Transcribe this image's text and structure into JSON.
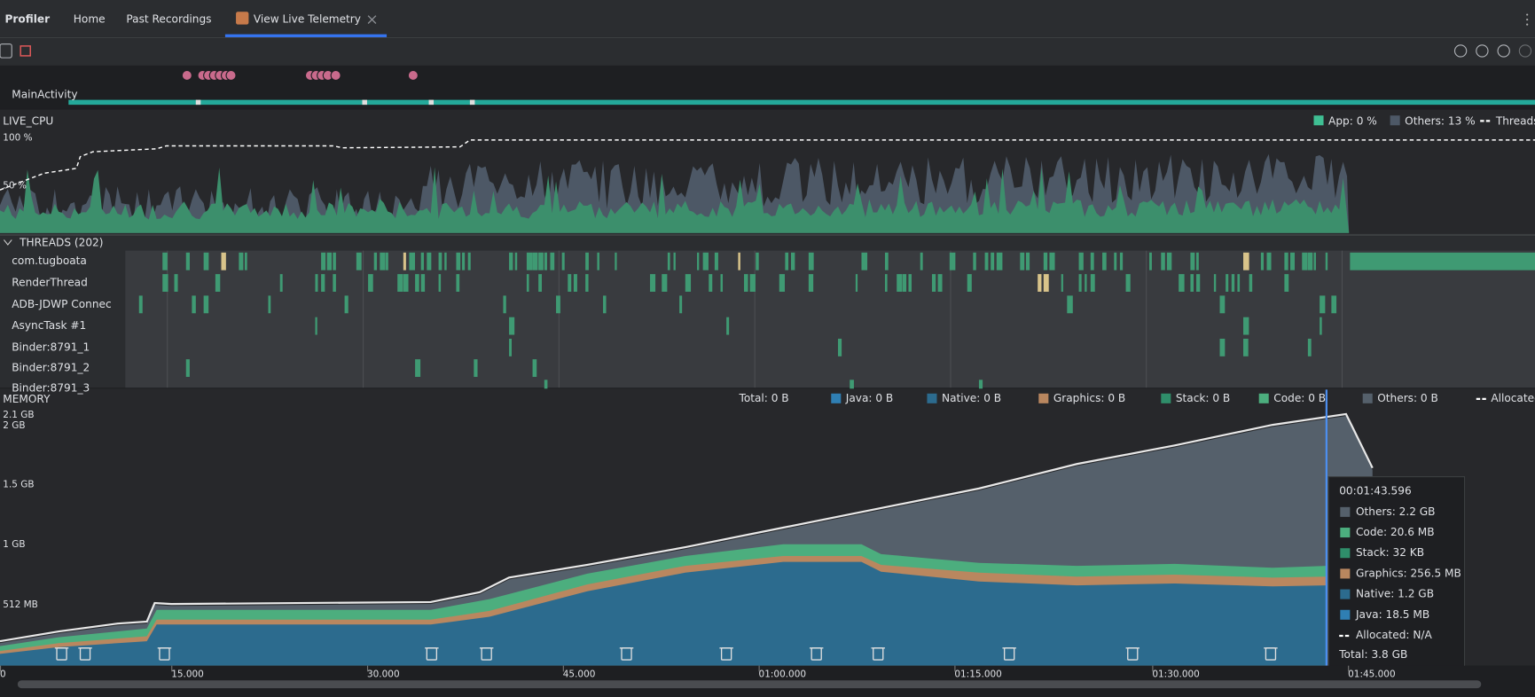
{
  "tabs": [
    "Profiler",
    "Home",
    "Past Recordings",
    "View Live Telemetry"
  ],
  "session": "MainActivity",
  "cpu": {
    "label": "LIVE_CPU",
    "y_labels": [
      "100 %",
      "50 %"
    ],
    "legend": [
      "App: 0 %",
      "Others: 13 %",
      "Threads"
    ]
  },
  "threads": {
    "header": "THREADS (202)",
    "names": [
      "com.tugboata",
      "RenderThread",
      "ADB-JDWP Connec",
      "AsyncTask #1",
      "Binder:8791_1",
      "Binder:8791_2",
      "Binder:8791_3"
    ]
  },
  "memory": {
    "label": "MEMORY",
    "legend": [
      "Total: 0 B",
      "Java: 0 B",
      "Native: 0 B",
      "Graphics: 0 B",
      "Stack: 0 B",
      "Code: 0 B",
      "Others: 0 B",
      "Allocated"
    ],
    "y_labels": [
      "2.1 GB",
      "2 GB",
      "1.5 GB",
      "1 GB",
      "512 MB"
    ],
    "tooltip": {
      "time": "00:01:43.596",
      "items": [
        "Others: 2.2 GB",
        "Code: 20.6 MB",
        "Stack: 32 KB",
        "Graphics: 256.5 MB",
        "Native: 1.2 GB",
        "Java: 18.5 MB",
        "Allocated: N/A"
      ],
      "total": "Total: 3.8 GB"
    }
  },
  "time_axis": [
    "0",
    "15.000",
    "30.000",
    "45.000",
    "01:00.000",
    "01:15.000",
    "01:30.000",
    "01:45.000"
  ]
}
